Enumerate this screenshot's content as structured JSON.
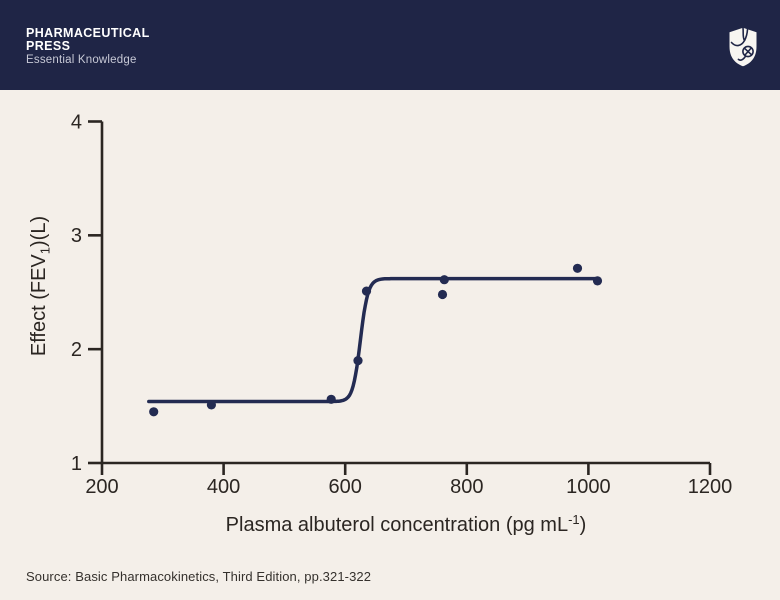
{
  "header": {
    "brand_line1": "PHARMACEUTICAL",
    "brand_line2": "PRESS",
    "tagline": "Essential Knowledge"
  },
  "footer": {
    "source": "Source: Basic Pharmacokinetics, Third Edition, pp.321-322"
  },
  "colors": {
    "brand_navy": "#1f2546",
    "curve_navy": "#232b52",
    "background_cream": "#f4efe9",
    "axis_ink": "#2b2622"
  },
  "icons": {
    "logo": "shield-crest-icon"
  },
  "chart_data": {
    "type": "scatter",
    "title": "",
    "xlabel": "Plasma albuterol concentration (pg mL⁻¹)",
    "xlabel_parts": {
      "pre": "Plasma albuterol concentration (pg mL",
      "sup": "-1",
      "post": ")"
    },
    "ylabel": "Effect (FEV₁)(L)",
    "ylabel_parts": {
      "pre": "Effect (FEV",
      "sub": "1",
      "post": ")(L)"
    },
    "xlim": [
      200,
      1200
    ],
    "ylim": [
      1,
      4
    ],
    "x_ticks": [
      200,
      400,
      600,
      800,
      1000,
      1200
    ],
    "y_ticks": [
      1,
      2,
      3,
      4
    ],
    "grid": false,
    "legend": "none",
    "points": [
      {
        "x": 285,
        "y": 1.45
      },
      {
        "x": 380,
        "y": 1.51
      },
      {
        "x": 577,
        "y": 1.56
      },
      {
        "x": 621,
        "y": 1.9
      },
      {
        "x": 635,
        "y": 2.51
      },
      {
        "x": 760,
        "y": 2.48
      },
      {
        "x": 763,
        "y": 2.61
      },
      {
        "x": 982,
        "y": 2.71
      },
      {
        "x": 1015,
        "y": 2.6
      }
    ],
    "fit_curve": {
      "model": "sigmoid-emax",
      "e0": 1.54,
      "emax": 2.62,
      "ec50": 625,
      "hill_coefficient": 100,
      "x_start": 277,
      "x_end": 1015
    }
  }
}
